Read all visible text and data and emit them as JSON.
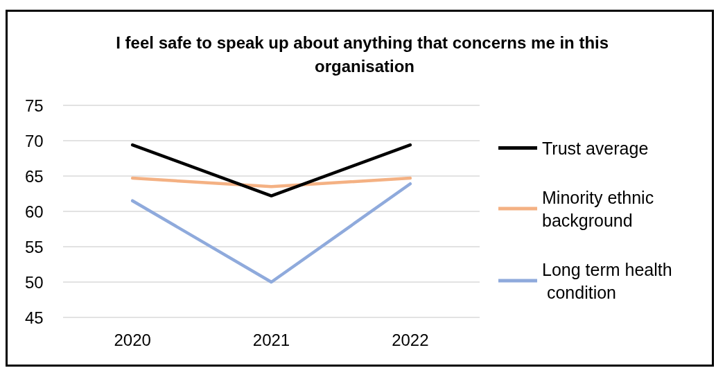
{
  "chart_data": {
    "type": "line",
    "title": "I feel safe to speak up about anything that concerns me in this organisation",
    "categories": [
      "2020",
      "2021",
      "2022"
    ],
    "series": [
      {
        "name": "Trust average",
        "color": "#000000",
        "values": [
          69.4,
          62.2,
          69.4
        ]
      },
      {
        "name": "Minority ethnic background",
        "color": "#f4b183",
        "values": [
          64.7,
          63.5,
          64.7
        ]
      },
      {
        "name": "Long term health condition",
        "color": "#8faadc",
        "values": [
          61.5,
          50,
          63.9
        ]
      }
    ],
    "ylim": [
      45,
      75
    ],
    "yticks": [
      45,
      50,
      55,
      60,
      65,
      70,
      75
    ],
    "grid": "y",
    "legend": "right",
    "marker": "none",
    "line_style": "solid"
  }
}
